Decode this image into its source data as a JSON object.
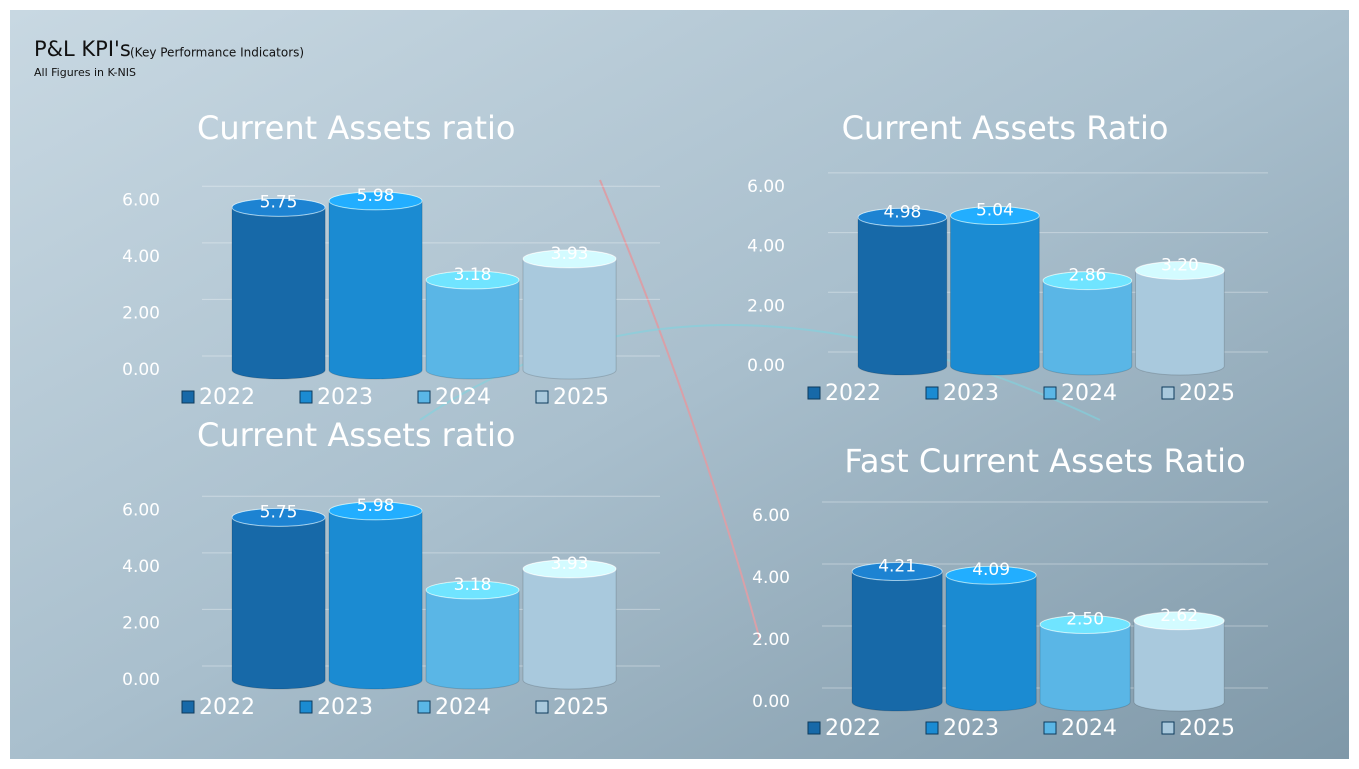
{
  "header": {
    "title": "P&L KPI's",
    "subtitle": "(Key Performance Indicators)",
    "note": "All Figures in K-NIS"
  },
  "chart_data": [
    {
      "type": "bar",
      "title": "Current Assets ratio",
      "categories": [
        "2022",
        "2023",
        "2024",
        "2025"
      ],
      "values": [
        5.75,
        5.98,
        3.18,
        3.93
      ],
      "colors": [
        "#1769a8",
        "#1b8bd2",
        "#5ab6e6",
        "#a9c9dd"
      ],
      "ylim": [
        0,
        7
      ],
      "yticks": [
        {
          "value": 0,
          "label": "0.00"
        },
        {
          "value": 2,
          "label": "2.00"
        },
        {
          "value": 4,
          "label": "4.00"
        },
        {
          "value": 6,
          "label": "6.00"
        }
      ],
      "legend": "bottom"
    },
    {
      "type": "bar",
      "title": "Current Assets Ratio",
      "categories": [
        "2022",
        "2023",
        "2024",
        "2025"
      ],
      "values": [
        4.98,
        5.04,
        2.86,
        3.2
      ],
      "value_labels": [
        "4.98",
        "5.04",
        "2.86",
        "3.20"
      ],
      "colors": [
        "#1769a8",
        "#1b8bd2",
        "#5ab6e6",
        "#a9c9dd"
      ],
      "ylim": [
        0,
        7
      ],
      "yticks": [
        {
          "value": 0,
          "label": "0.00"
        },
        {
          "value": 2,
          "label": "2.00"
        },
        {
          "value": 4,
          "label": "4.00"
        },
        {
          "value": 6,
          "label": "6.00"
        }
      ],
      "legend": "bottom"
    },
    {
      "type": "bar",
      "title": "Current Assets ratio",
      "categories": [
        "2022",
        "2023",
        "2024",
        "2025"
      ],
      "values": [
        5.75,
        5.98,
        3.18,
        3.93
      ],
      "colors": [
        "#1769a8",
        "#1b8bd2",
        "#5ab6e6",
        "#a9c9dd"
      ],
      "ylim": [
        0,
        7
      ],
      "yticks": [
        {
          "value": 0,
          "label": "0.00"
        },
        {
          "value": 2,
          "label": "2.00"
        },
        {
          "value": 4,
          "label": "4.00"
        },
        {
          "value": 6,
          "label": "6.00"
        }
      ],
      "legend": "bottom"
    },
    {
      "type": "bar",
      "title": "Fast Current Assets Ratio",
      "categories": [
        "2022",
        "2023",
        "2024",
        "2025"
      ],
      "values": [
        4.21,
        4.09,
        2.5,
        2.62
      ],
      "value_labels": [
        "4.21",
        "4.09",
        "2.50",
        "2.62"
      ],
      "colors": [
        "#1769a8",
        "#1b8bd2",
        "#5ab6e6",
        "#a9c9dd"
      ],
      "ylim": [
        0,
        7
      ],
      "yticks": [
        {
          "value": 0,
          "label": "0.00"
        },
        {
          "value": 2,
          "label": "2.00"
        },
        {
          "value": 4,
          "label": "4.00"
        },
        {
          "value": 6,
          "label": "6.00"
        }
      ],
      "legend": "bottom"
    }
  ]
}
